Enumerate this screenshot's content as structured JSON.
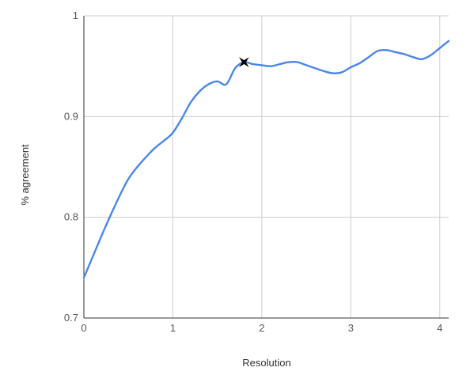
{
  "chart_data": {
    "type": "line",
    "title": "",
    "xlabel": "Resolution",
    "ylabel": "% agreement",
    "xlim": [
      0,
      4.1
    ],
    "ylim": [
      0.7,
      1.0
    ],
    "x_ticks": [
      0,
      1,
      2,
      3,
      4
    ],
    "x_tick_labels": [
      "0",
      "1",
      "2",
      "3",
      "4"
    ],
    "y_ticks": [
      0.7,
      0.8,
      0.9,
      1.0
    ],
    "y_tick_labels": [
      "0.7",
      "0.8",
      "0.9",
      "1"
    ],
    "grid": true,
    "series": [
      {
        "color": "#4a86e8",
        "x": [
          0,
          0.1,
          0.2,
          0.3,
          0.4,
          0.5,
          0.6,
          0.7,
          0.8,
          0.9,
          1.0,
          1.1,
          1.2,
          1.3,
          1.4,
          1.5,
          1.6,
          1.7,
          1.8,
          1.9,
          2.0,
          2.1,
          2.2,
          2.3,
          2.4,
          2.5,
          2.6,
          2.7,
          2.8,
          2.9,
          3.0,
          3.1,
          3.2,
          3.3,
          3.4,
          3.5,
          3.6,
          3.7,
          3.8,
          3.9,
          4.0,
          4.1
        ],
        "y": [
          0.74,
          0.761,
          0.782,
          0.802,
          0.821,
          0.838,
          0.85,
          0.86,
          0.869,
          0.876,
          0.884,
          0.898,
          0.914,
          0.925,
          0.932,
          0.935,
          0.932,
          0.948,
          0.954,
          0.952,
          0.951,
          0.95,
          0.952,
          0.954,
          0.954,
          0.951,
          0.948,
          0.945,
          0.943,
          0.944,
          0.949,
          0.953,
          0.959,
          0.965,
          0.966,
          0.964,
          0.962,
          0.959,
          0.957,
          0.961,
          0.968,
          0.975
        ]
      }
    ],
    "annotations": [
      {
        "type": "marker",
        "symbol": "star",
        "x": 1.8,
        "y": 0.954,
        "color": "#000000"
      }
    ]
  }
}
